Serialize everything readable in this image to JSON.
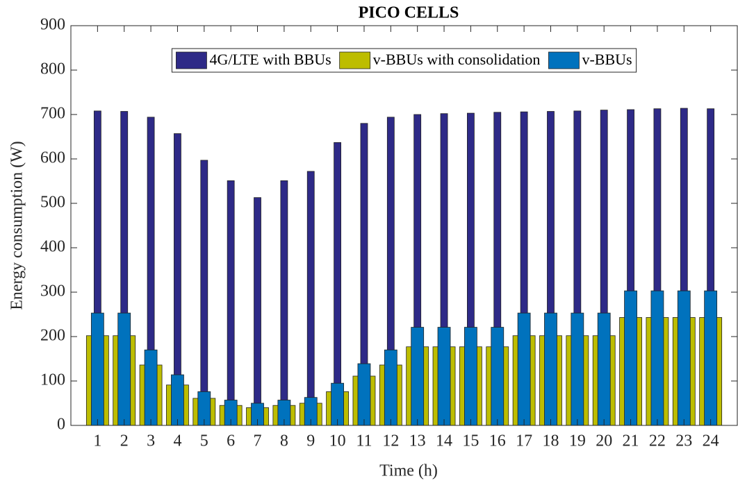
{
  "chart_data": {
    "type": "bar",
    "title": "PICO CELLS",
    "xlabel": "Time (h)",
    "ylabel": "Energy consumption (W)",
    "categories": [
      "1",
      "2",
      "3",
      "4",
      "5",
      "6",
      "7",
      "8",
      "9",
      "10",
      "11",
      "12",
      "13",
      "14",
      "15",
      "16",
      "17",
      "18",
      "19",
      "20",
      "21",
      "22",
      "23",
      "24"
    ],
    "series": [
      {
        "name": "4G/LTE with BBUs",
        "color": "#2e2a87",
        "values": [
          708,
          707,
          694,
          657,
          597,
          551,
          513,
          551,
          572,
          637,
          680,
          694,
          700,
          702,
          703,
          705,
          706,
          707,
          708,
          710,
          711,
          713,
          714,
          713
        ]
      },
      {
        "name": "v-BBUs with consolidation",
        "color": "#bdbd00",
        "values": [
          202,
          202,
          136,
          91,
          61,
          45,
          40,
          45,
          50,
          76,
          111,
          136,
          177,
          177,
          177,
          177,
          202,
          202,
          202,
          202,
          243,
          243,
          243,
          243
        ]
      },
      {
        "name": "v-BBUs",
        "color": "#0072bd",
        "values": [
          253,
          253,
          170,
          114,
          76,
          57,
          50,
          57,
          63,
          95,
          139,
          170,
          221,
          221,
          221,
          221,
          253,
          253,
          253,
          253,
          303,
          303,
          303,
          303
        ]
      }
    ],
    "ylim": [
      0,
      900
    ],
    "yticks": [
      0,
      100,
      200,
      300,
      400,
      500,
      600,
      700,
      800,
      900
    ],
    "legend": "north"
  }
}
